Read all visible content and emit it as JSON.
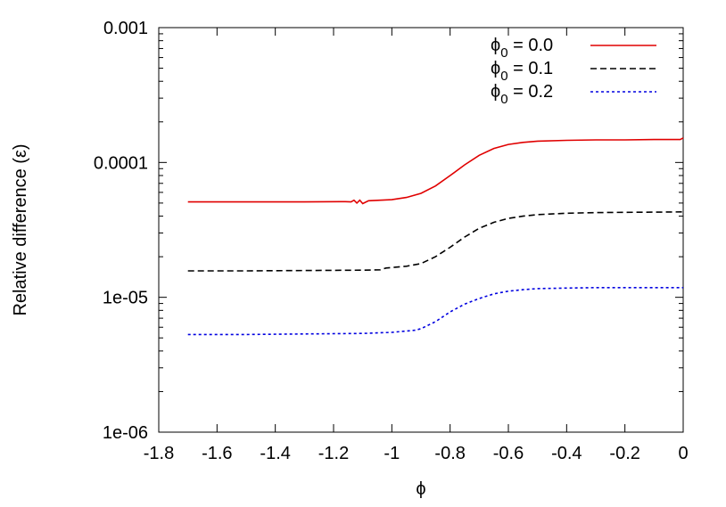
{
  "chart_data": {
    "type": "line",
    "xlabel": "ϕ",
    "ylabel": "Relative difference (ε)",
    "xlim": [
      -1.8,
      0
    ],
    "ylim": [
      1e-06,
      0.001
    ],
    "yscale": "log",
    "grid": false,
    "legend_position": "top-right",
    "x_ticks": [
      "-1.8",
      "-1.6",
      "-1.4",
      "-1.2",
      "-1",
      "-0.8",
      "-0.6",
      "-0.4",
      "-0.2",
      "0"
    ],
    "y_ticks": [
      "1e-06",
      "1e-05",
      "0.0001",
      "0.001"
    ],
    "series": [
      {
        "name": "ϕ0 = 0.0",
        "legend_main": "ϕ",
        "legend_sub": "0",
        "legend_rest": " = 0.0",
        "color": "#e00000",
        "dash": "solid",
        "points": [
          [
            -1.7,
            5.1e-05
          ],
          [
            -1.5,
            5.1e-05
          ],
          [
            -1.3,
            5.1e-05
          ],
          [
            -1.16,
            5.12e-05
          ],
          [
            -1.14,
            5.1e-05
          ],
          [
            -1.13,
            5.25e-05
          ],
          [
            -1.12,
            5e-05
          ],
          [
            -1.11,
            5.25e-05
          ],
          [
            -1.1,
            4.95e-05
          ],
          [
            -1.08,
            5.2e-05
          ],
          [
            -1.0,
            5.3e-05
          ],
          [
            -0.95,
            5.5e-05
          ],
          [
            -0.9,
            5.9e-05
          ],
          [
            -0.85,
            6.7e-05
          ],
          [
            -0.8,
            8e-05
          ],
          [
            -0.75,
            9.6e-05
          ],
          [
            -0.7,
            0.000113
          ],
          [
            -0.65,
            0.000127
          ],
          [
            -0.6,
            0.000136
          ],
          [
            -0.55,
            0.000141
          ],
          [
            -0.5,
            0.000144
          ],
          [
            -0.4,
            0.000146
          ],
          [
            -0.3,
            0.000147
          ],
          [
            -0.2,
            0.000147
          ],
          [
            -0.1,
            0.000148
          ],
          [
            -0.01,
            0.000148
          ],
          [
            0.0,
            0.000152
          ]
        ]
      },
      {
        "name": "ϕ0 = 0.1",
        "legend_main": "ϕ",
        "legend_sub": "0",
        "legend_rest": " = 0.1",
        "color": "#000000",
        "dash": "dashed",
        "points": [
          [
            -1.7,
            1.57e-05
          ],
          [
            -1.5,
            1.57e-05
          ],
          [
            -1.3,
            1.58e-05
          ],
          [
            -1.1,
            1.59e-05
          ],
          [
            -1.04,
            1.6e-05
          ],
          [
            -1.02,
            1.65e-05
          ],
          [
            -0.95,
            1.7e-05
          ],
          [
            -0.9,
            1.78e-05
          ],
          [
            -0.85,
            2e-05
          ],
          [
            -0.8,
            2.35e-05
          ],
          [
            -0.75,
            2.8e-05
          ],
          [
            -0.7,
            3.25e-05
          ],
          [
            -0.65,
            3.6e-05
          ],
          [
            -0.6,
            3.85e-05
          ],
          [
            -0.55,
            4e-05
          ],
          [
            -0.5,
            4.1e-05
          ],
          [
            -0.4,
            4.2e-05
          ],
          [
            -0.3,
            4.25e-05
          ],
          [
            -0.2,
            4.27e-05
          ],
          [
            -0.1,
            4.28e-05
          ],
          [
            0.0,
            4.3e-05
          ]
        ]
      },
      {
        "name": "ϕ0 = 0.2",
        "legend_main": "ϕ",
        "legend_sub": "0",
        "legend_rest": " = 0.2",
        "color": "#0000e0",
        "dash": "dotted",
        "points": [
          [
            -1.7,
            5.3e-06
          ],
          [
            -1.5,
            5.3e-06
          ],
          [
            -1.3,
            5.35e-06
          ],
          [
            -1.1,
            5.4e-06
          ],
          [
            -1.0,
            5.5e-06
          ],
          [
            -0.92,
            5.7e-06
          ],
          [
            -0.9,
            5.85e-06
          ],
          [
            -0.85,
            6.6e-06
          ],
          [
            -0.8,
            7.8e-06
          ],
          [
            -0.75,
            8.9e-06
          ],
          [
            -0.7,
            9.8e-06
          ],
          [
            -0.65,
            1.06e-05
          ],
          [
            -0.6,
            1.11e-05
          ],
          [
            -0.55,
            1.14e-05
          ],
          [
            -0.5,
            1.16e-05
          ],
          [
            -0.4,
            1.17e-05
          ],
          [
            -0.3,
            1.18e-05
          ],
          [
            -0.2,
            1.18e-05
          ],
          [
            -0.1,
            1.18e-05
          ],
          [
            0.0,
            1.18e-05
          ]
        ]
      }
    ]
  }
}
